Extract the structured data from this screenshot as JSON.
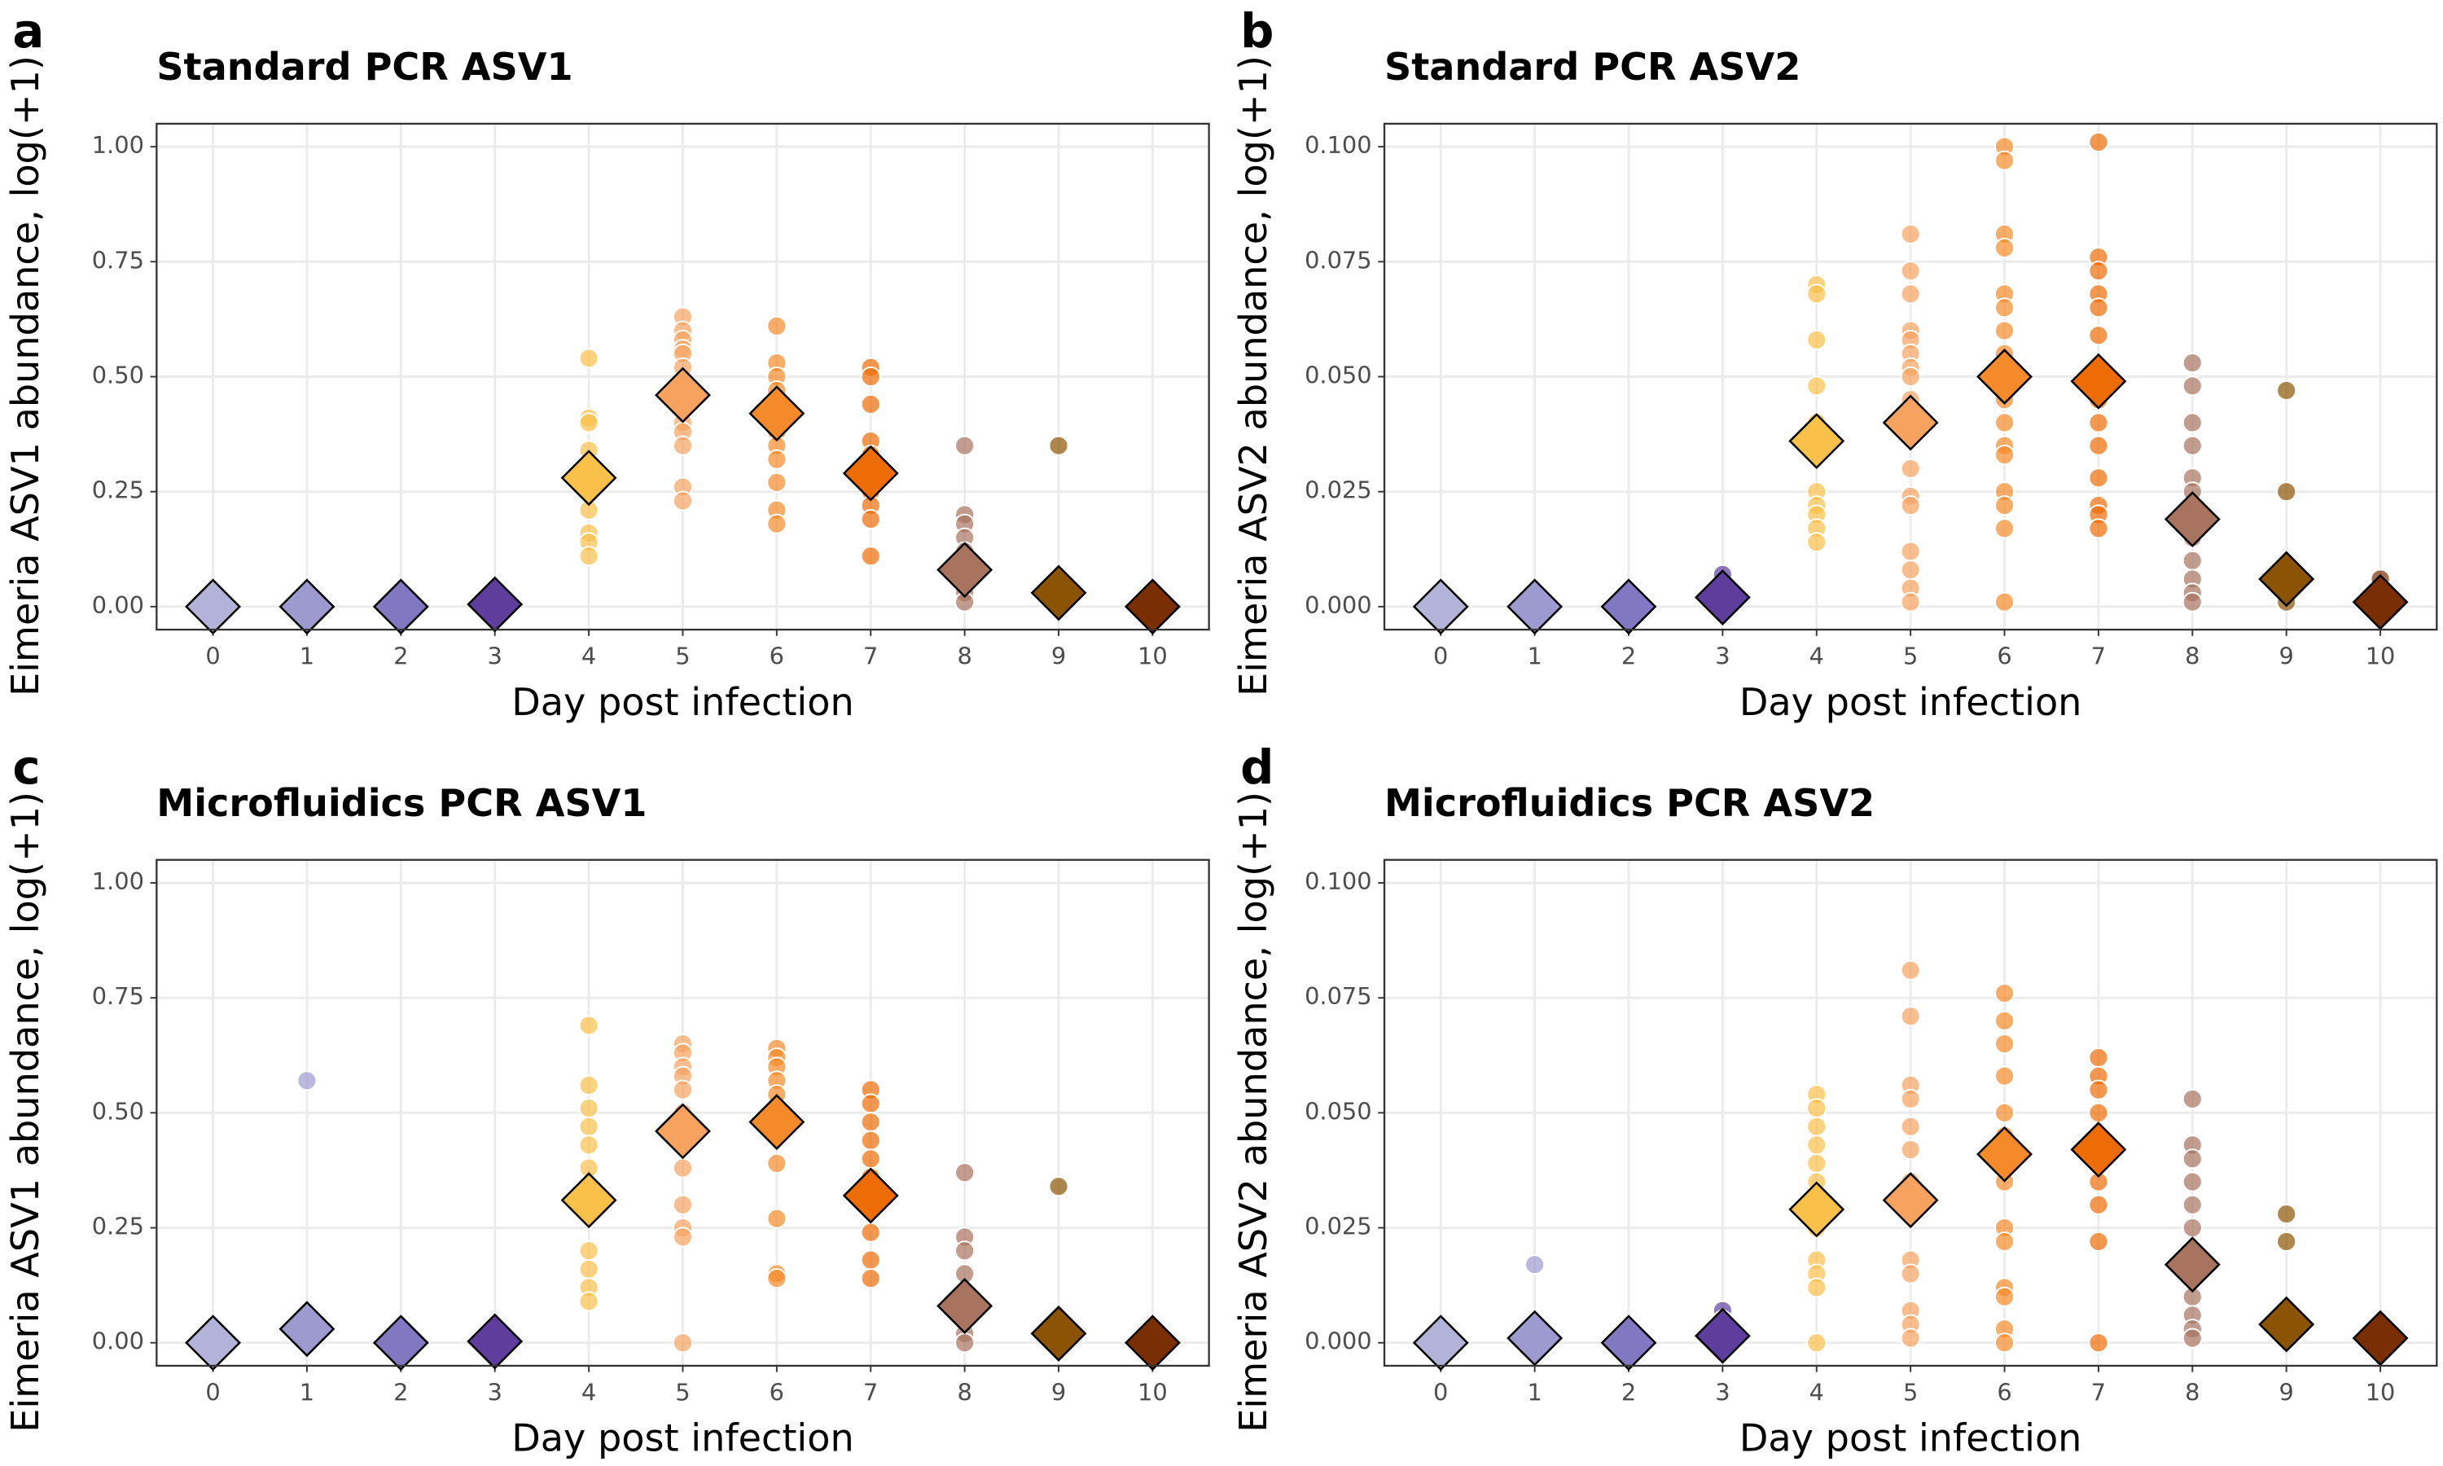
{
  "chart_data": [
    {
      "type": "scatter",
      "panel": "a",
      "title": "Standard PCR ASV1",
      "x_label": "Day post infection",
      "y_label": "Eimeria ASV1 abundance, log(+1)",
      "xlim": [
        -0.6,
        10.6
      ],
      "xticks": [
        0,
        1,
        2,
        3,
        4,
        5,
        6,
        7,
        8,
        9,
        10
      ],
      "ylim": [
        -0.05,
        1.05
      ],
      "yticks": [
        {
          "value": 0,
          "label": "0.00"
        },
        {
          "value": 0.25,
          "label": "0.25"
        },
        {
          "value": 0.5,
          "label": "0.50"
        },
        {
          "value": 0.75,
          "label": "0.75"
        },
        {
          "value": 1,
          "label": "1.00"
        }
      ],
      "grid": true,
      "day_colors": [
        "#b3b3d9",
        "#9d9ad0",
        "#8078c0",
        "#5e3d9c",
        "#f9c04a",
        "#f7a25f",
        "#f58a2a",
        "#ee6c06",
        "#a87460",
        "#8b5404",
        "#7a2e04"
      ],
      "groups": [
        {
          "x": 0,
          "values": [
            0,
            0
          ]
        },
        {
          "x": 1,
          "values": [
            0,
            0
          ]
        },
        {
          "x": 2,
          "values": [
            0,
            0
          ]
        },
        {
          "x": 3,
          "values": [
            0,
            0.01
          ]
        },
        {
          "x": 4,
          "values": [
            0.54,
            0.41,
            0.4,
            0.34,
            0.25,
            0.21,
            0.16,
            0.14,
            0.11
          ]
        },
        {
          "x": 5,
          "values": [
            0.63,
            0.6,
            0.58,
            0.56,
            0.55,
            0.52,
            0.48,
            0.44,
            0.4,
            0.38,
            0.35,
            0.26,
            0.23
          ]
        },
        {
          "x": 6,
          "values": [
            0.61,
            0.53,
            0.5,
            0.47,
            0.44,
            0.38,
            0.35,
            0.32,
            0.27,
            0.21,
            0.18
          ]
        },
        {
          "x": 7,
          "values": [
            0.52,
            0.5,
            0.44,
            0.36,
            0.33,
            0.28,
            0.25,
            0.22,
            0.19,
            0.11
          ]
        },
        {
          "x": 8,
          "values": [
            0.35,
            0.2,
            0.18,
            0.15,
            0.12,
            0.1,
            0.06,
            0.03,
            0.01
          ]
        },
        {
          "x": 9,
          "values": [
            0.35,
            0.02
          ]
        },
        {
          "x": 10,
          "values": [
            0,
            0
          ]
        }
      ],
      "means": {
        "x": [
          0,
          1,
          2,
          3,
          4,
          5,
          6,
          7,
          8,
          9,
          10
        ],
        "values": [
          0,
          0,
          0,
          0.005,
          0.28,
          0.46,
          0.42,
          0.29,
          0.08,
          0.03,
          0
        ]
      }
    },
    {
      "type": "scatter",
      "panel": "b",
      "title": "Standard PCR ASV2",
      "x_label": "Day post infection",
      "y_label": "Eimeria ASV2 abundance, log(+1)",
      "xlim": [
        -0.6,
        10.6
      ],
      "xticks": [
        0,
        1,
        2,
        3,
        4,
        5,
        6,
        7,
        8,
        9,
        10
      ],
      "ylim": [
        -0.005,
        0.105
      ],
      "yticks": [
        {
          "value": 0,
          "label": "0.000"
        },
        {
          "value": 0.025,
          "label": "0.025"
        },
        {
          "value": 0.05,
          "label": "0.050"
        },
        {
          "value": 0.075,
          "label": "0.075"
        },
        {
          "value": 0.1,
          "label": "0.100"
        }
      ],
      "grid": true,
      "day_colors": [
        "#b3b3d9",
        "#9d9ad0",
        "#8078c0",
        "#5e3d9c",
        "#f9c04a",
        "#f7a25f",
        "#f58a2a",
        "#ee6c06",
        "#a87460",
        "#8b5404",
        "#7a2e04"
      ],
      "groups": [
        {
          "x": 0,
          "values": [
            0,
            0
          ]
        },
        {
          "x": 1,
          "values": [
            0,
            0
          ]
        },
        {
          "x": 2,
          "values": [
            0,
            0
          ]
        },
        {
          "x": 3,
          "values": [
            0.007,
            0.003
          ]
        },
        {
          "x": 4,
          "values": [
            0.07,
            0.068,
            0.058,
            0.048,
            0.04,
            0.035,
            0.025,
            0.022,
            0.02,
            0.017,
            0.014
          ]
        },
        {
          "x": 5,
          "values": [
            0.081,
            0.073,
            0.068,
            0.06,
            0.058,
            0.055,
            0.052,
            0.05,
            0.045,
            0.04,
            0.03,
            0.024,
            0.022,
            0.012,
            0.008,
            0.004,
            0.001
          ]
        },
        {
          "x": 6,
          "values": [
            0.1,
            0.097,
            0.081,
            0.078,
            0.068,
            0.065,
            0.06,
            0.055,
            0.045,
            0.04,
            0.035,
            0.033,
            0.025,
            0.022,
            0.017,
            0.001
          ]
        },
        {
          "x": 7,
          "values": [
            0.101,
            0.076,
            0.073,
            0.068,
            0.065,
            0.059,
            0.05,
            0.045,
            0.04,
            0.035,
            0.028,
            0.022,
            0.02,
            0.017
          ]
        },
        {
          "x": 8,
          "values": [
            0.053,
            0.048,
            0.04,
            0.035,
            0.028,
            0.025,
            0.02,
            0.015,
            0.01,
            0.006,
            0.003,
            0.001
          ]
        },
        {
          "x": 9,
          "values": [
            0.047,
            0.025,
            0.001
          ]
        },
        {
          "x": 10,
          "values": [
            0.006,
            0.002
          ]
        }
      ],
      "means": {
        "x": [
          0,
          1,
          2,
          3,
          4,
          5,
          6,
          7,
          8,
          9,
          10
        ],
        "values": [
          0,
          0,
          0,
          0.002,
          0.036,
          0.04,
          0.05,
          0.049,
          0.019,
          0.006,
          0.001
        ]
      }
    },
    {
      "type": "scatter",
      "panel": "c",
      "title": "Microfluidics PCR ASV1",
      "x_label": "Day post infection",
      "y_label": "Eimeria ASV1 abundance, log(+1)",
      "xlim": [
        -0.6,
        10.6
      ],
      "xticks": [
        0,
        1,
        2,
        3,
        4,
        5,
        6,
        7,
        8,
        9,
        10
      ],
      "ylim": [
        -0.05,
        1.05
      ],
      "yticks": [
        {
          "value": 0,
          "label": "0.00"
        },
        {
          "value": 0.25,
          "label": "0.25"
        },
        {
          "value": 0.5,
          "label": "0.50"
        },
        {
          "value": 0.75,
          "label": "0.75"
        },
        {
          "value": 1,
          "label": "1.00"
        }
      ],
      "grid": true,
      "day_colors": [
        "#b3b3d9",
        "#9d9ad0",
        "#8078c0",
        "#5e3d9c",
        "#f9c04a",
        "#f7a25f",
        "#f58a2a",
        "#ee6c06",
        "#a87460",
        "#8b5404",
        "#7a2e04"
      ],
      "groups": [
        {
          "x": 0,
          "values": [
            0,
            0
          ]
        },
        {
          "x": 1,
          "values": [
            0.57,
            0
          ]
        },
        {
          "x": 2,
          "values": [
            0,
            0
          ]
        },
        {
          "x": 3,
          "values": [
            0,
            0.01
          ]
        },
        {
          "x": 4,
          "values": [
            0.69,
            0.56,
            0.51,
            0.47,
            0.43,
            0.38,
            0.34,
            0.2,
            0.16,
            0.12,
            0.09
          ]
        },
        {
          "x": 5,
          "values": [
            0.65,
            0.63,
            0.6,
            0.58,
            0.55,
            0.5,
            0.43,
            0.38,
            0.3,
            0.25,
            0.23,
            0
          ]
        },
        {
          "x": 6,
          "values": [
            0.64,
            0.62,
            0.6,
            0.57,
            0.54,
            0.5,
            0.45,
            0.39,
            0.27,
            0.15,
            0.14
          ]
        },
        {
          "x": 7,
          "values": [
            0.55,
            0.52,
            0.48,
            0.44,
            0.4,
            0.36,
            0.3,
            0.24,
            0.18,
            0.14
          ]
        },
        {
          "x": 8,
          "values": [
            0.37,
            0.23,
            0.2,
            0.15,
            0.1,
            0.06,
            0.02,
            0
          ]
        },
        {
          "x": 9,
          "values": [
            0.34,
            0.01
          ]
        },
        {
          "x": 10,
          "values": [
            0,
            0
          ]
        }
      ],
      "means": {
        "x": [
          0,
          1,
          2,
          3,
          4,
          5,
          6,
          7,
          8,
          9,
          10
        ],
        "values": [
          0,
          0.03,
          0,
          0.003,
          0.31,
          0.46,
          0.48,
          0.32,
          0.08,
          0.02,
          0
        ]
      }
    },
    {
      "type": "scatter",
      "panel": "d",
      "title": "Microfluidics PCR ASV2",
      "x_label": "Day post infection",
      "y_label": "Eimeria ASV2 abundance, log(+1)",
      "xlim": [
        -0.6,
        10.6
      ],
      "xticks": [
        0,
        1,
        2,
        3,
        4,
        5,
        6,
        7,
        8,
        9,
        10
      ],
      "ylim": [
        -0.005,
        0.105
      ],
      "yticks": [
        {
          "value": 0,
          "label": "0.000"
        },
        {
          "value": 0.025,
          "label": "0.025"
        },
        {
          "value": 0.05,
          "label": "0.050"
        },
        {
          "value": 0.075,
          "label": "0.075"
        },
        {
          "value": 0.1,
          "label": "0.100"
        }
      ],
      "grid": true,
      "day_colors": [
        "#b3b3d9",
        "#9d9ad0",
        "#8078c0",
        "#5e3d9c",
        "#f9c04a",
        "#f7a25f",
        "#f58a2a",
        "#ee6c06",
        "#a87460",
        "#8b5404",
        "#7a2e04"
      ],
      "groups": [
        {
          "x": 0,
          "values": [
            0,
            0
          ]
        },
        {
          "x": 1,
          "values": [
            0.017,
            0
          ]
        },
        {
          "x": 2,
          "values": [
            0,
            0
          ]
        },
        {
          "x": 3,
          "values": [
            0.007,
            0.005
          ]
        },
        {
          "x": 4,
          "values": [
            0.054,
            0.051,
            0.047,
            0.043,
            0.039,
            0.035,
            0.03,
            0.025,
            0.018,
            0.015,
            0.012,
            0
          ]
        },
        {
          "x": 5,
          "values": [
            0.081,
            0.071,
            0.056,
            0.053,
            0.047,
            0.042,
            0.035,
            0.03,
            0.018,
            0.015,
            0.007,
            0.004,
            0.001
          ]
        },
        {
          "x": 6,
          "values": [
            0.076,
            0.07,
            0.065,
            0.058,
            0.05,
            0.045,
            0.04,
            0.035,
            0.025,
            0.022,
            0.012,
            0.01,
            0.003,
            0
          ]
        },
        {
          "x": 7,
          "values": [
            0.062,
            0.058,
            0.055,
            0.05,
            0.045,
            0.04,
            0.035,
            0.03,
            0.022,
            0
          ]
        },
        {
          "x": 8,
          "values": [
            0.053,
            0.043,
            0.04,
            0.035,
            0.03,
            0.025,
            0.02,
            0.015,
            0.01,
            0.006,
            0.003,
            0.001
          ]
        },
        {
          "x": 9,
          "values": [
            0.028,
            0.022,
            0.002
          ]
        },
        {
          "x": 10,
          "values": [
            0.001,
            0
          ]
        }
      ],
      "means": {
        "x": [
          0,
          1,
          2,
          3,
          4,
          5,
          6,
          7,
          8,
          9,
          10
        ],
        "values": [
          0,
          0.001,
          0,
          0.0015,
          0.029,
          0.031,
          0.041,
          0.042,
          0.017,
          0.004,
          0.001
        ]
      }
    }
  ]
}
